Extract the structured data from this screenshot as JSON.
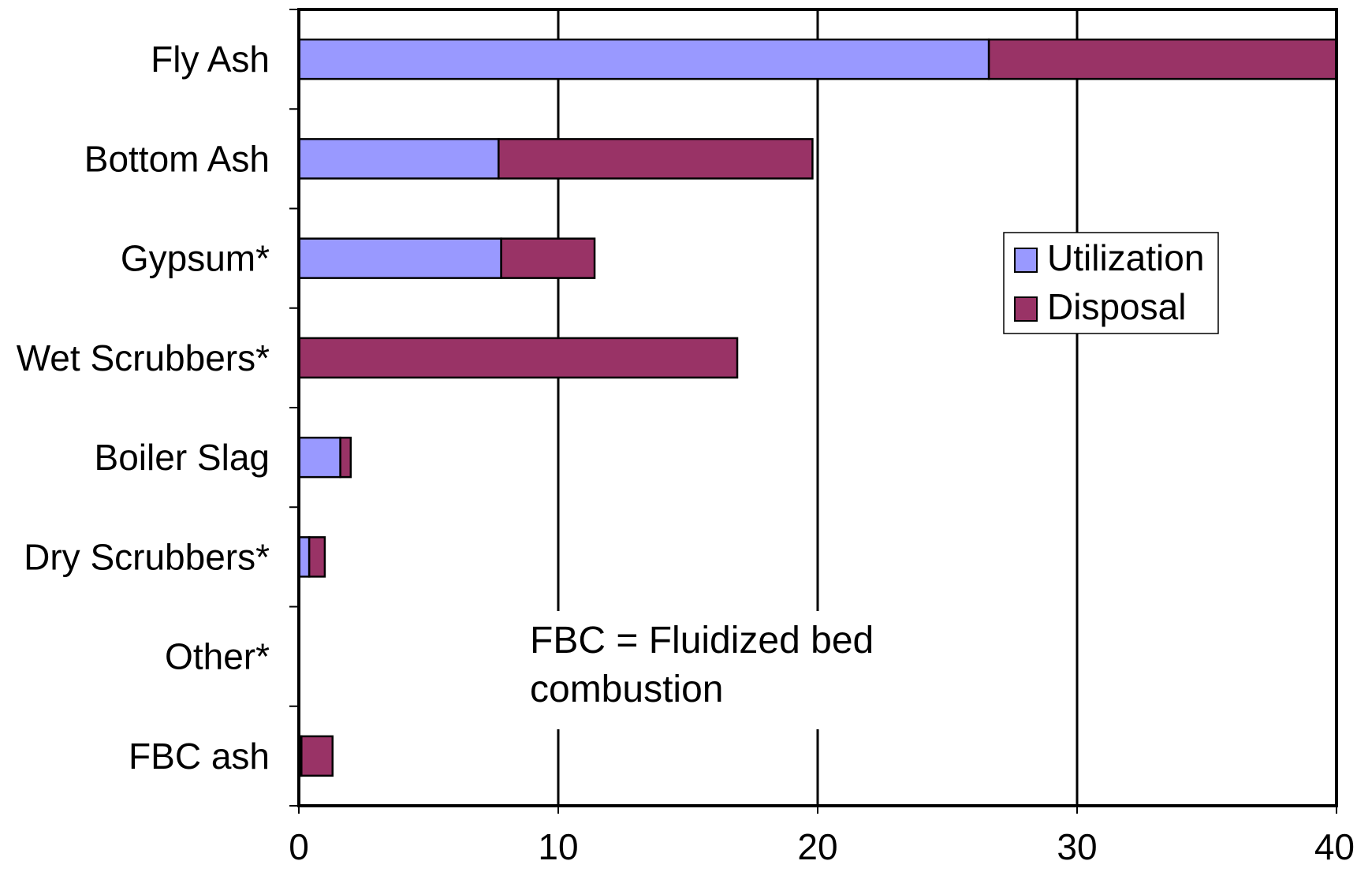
{
  "chart_data": {
    "type": "bar",
    "orientation": "horizontal",
    "stacked": true,
    "categories": [
      "Fly Ash",
      "Bottom Ash",
      "Gypsum*",
      "Wet Scrubbers*",
      "Boiler Slag",
      "Dry Scrubbers*",
      "Other*",
      "FBC ash"
    ],
    "series": [
      {
        "name": "Utilization",
        "color": "#9999ff",
        "values": [
          26.6,
          7.7,
          7.8,
          0,
          1.6,
          0.4,
          0,
          0.1
        ]
      },
      {
        "name": "Disposal",
        "color": "#993366",
        "values": [
          13.4,
          12.1,
          3.6,
          16.9,
          0.4,
          0.6,
          0,
          1.2
        ]
      }
    ],
    "xlim": [
      0,
      40
    ],
    "x_ticks": [
      "0",
      "10",
      "20",
      "30",
      "40"
    ],
    "title": "",
    "xlabel": "",
    "ylabel": "",
    "grid": "vertical",
    "legend_position": "right-upper",
    "annotation": {
      "line1": "FBC  = Fluidized bed",
      "line2": "combustion"
    }
  }
}
